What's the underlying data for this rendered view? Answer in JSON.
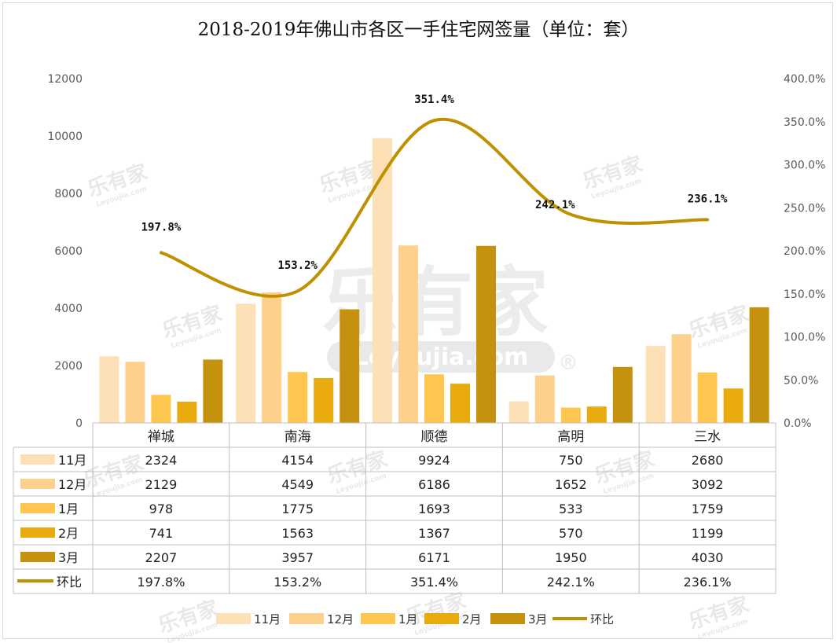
{
  "chart_data": {
    "type": "bar",
    "title": "2018-2019年佛山市各区一手住宅网签量（单位：套）",
    "categories": [
      "禅城",
      "南海",
      "顺德",
      "高明",
      "三水"
    ],
    "series": [
      {
        "name": "11月",
        "color": "#fde0b6",
        "values": [
          2324,
          4154,
          9924,
          750,
          2680
        ]
      },
      {
        "name": "12月",
        "color": "#fdd08c",
        "values": [
          2129,
          4549,
          6186,
          1652,
          3092
        ]
      },
      {
        "name": "1月",
        "color": "#fec64e",
        "values": [
          978,
          1775,
          1693,
          533,
          1759
        ]
      },
      {
        "name": "2月",
        "color": "#e8aa0c",
        "values": [
          741,
          1563,
          1367,
          570,
          1199
        ]
      },
      {
        "name": "3月",
        "color": "#c4920f",
        "values": [
          2207,
          3957,
          6171,
          1950,
          4030
        ]
      }
    ],
    "line": {
      "name": "环比",
      "color": "#bf9000",
      "axis": "right",
      "values": [
        197.8,
        153.2,
        351.4,
        242.1,
        236.1
      ],
      "labels": [
        "197.8%",
        "153.2%",
        "351.4%",
        "242.1%",
        "236.1%"
      ]
    },
    "ylim": [
      0,
      12000
    ],
    "yticks": [
      "0",
      "2000",
      "4000",
      "6000",
      "8000",
      "10000",
      "12000"
    ],
    "y2lim": [
      0,
      400
    ],
    "y2ticks": [
      "0.0%",
      "50.0%",
      "100.0%",
      "150.0%",
      "200.0%",
      "250.0%",
      "300.0%",
      "350.0%",
      "400.0%"
    ],
    "data_table": true,
    "legend_position": "bottom",
    "grid": false
  },
  "watermark": {
    "brand": "乐有家",
    "site": "Leyoujia.com",
    "registered": "®"
  }
}
